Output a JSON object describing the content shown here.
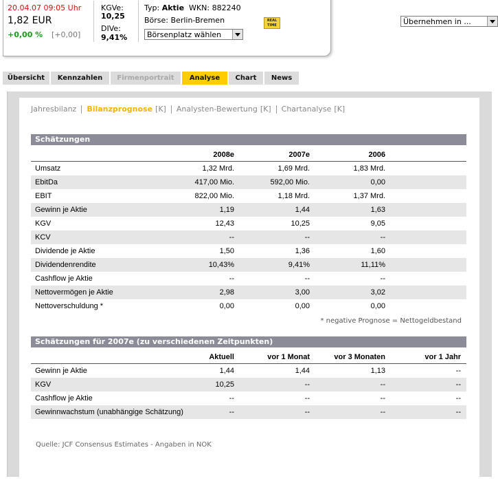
{
  "quote": {
    "datetime": "20.04.07  09:05 Uhr",
    "price": "1,82 EUR",
    "change_pct": "+0,00 %",
    "change_abs": "[+0,00]",
    "kgve_label": "KGVe:",
    "kgve": "10,25",
    "dive_label": "DIVe:",
    "dive": "9,41%",
    "typ_label": "Typ:",
    "typ": "Aktie",
    "wkn_label": "WKN:",
    "wkn": "882240",
    "boerse": "Börse: Berlin-Bremen",
    "exchange_select": "Börsenplatz wählen",
    "realtime": "REAL TIME",
    "transfer_select": "Übernehmen in ..."
  },
  "tabs": [
    "Übersicht",
    "Kennzahlen",
    "Firmenportrait",
    "Analyse",
    "Chart",
    "News"
  ],
  "subnav": [
    {
      "label": "Jahresbilanz"
    },
    {
      "label": "Bilanzprognose",
      "suffix": "[K]"
    },
    {
      "label": "Analysten-Bewertung",
      "suffix": "[K]"
    },
    {
      "label": "Chartanalyse",
      "suffix": "[K]"
    }
  ],
  "estimates": {
    "title": "Schätzungen",
    "columns": [
      "2008e",
      "2007e",
      "2006"
    ],
    "rows": [
      [
        "Umsatz",
        "1,32 Mrd.",
        "1,69 Mrd.",
        "1,83 Mrd."
      ],
      [
        "EbitDa",
        "417,00 Mio.",
        "592,00 Mio.",
        "0,00"
      ],
      [
        "EBIT",
        "822,00 Mio.",
        "1,18 Mrd.",
        "1,37 Mrd."
      ],
      [
        "Gewinn je Aktie",
        "1,19",
        "1,44",
        "1,63"
      ],
      [
        "KGV",
        "12,43",
        "10,25",
        "9,05"
      ],
      [
        "KCV",
        "--",
        "--",
        "--"
      ],
      [
        "Dividende je Aktie",
        "1,50",
        "1,36",
        "1,60"
      ],
      [
        "Dividendenrendite",
        "10,43%",
        "9,41%",
        "11,11%"
      ],
      [
        "Cashflow je Aktie",
        "--",
        "--",
        "--"
      ],
      [
        "Nettovermögen je Aktie",
        "2,98",
        "3,00",
        "3,02"
      ],
      [
        "Nettoverschuldung *",
        "0,00",
        "0,00",
        "0,00"
      ]
    ]
  },
  "footnote": "* negative Prognose = Nettogeldbestand",
  "estimates_timeline": {
    "title": "Schätzungen für 2007e (zu verschiedenen Zeitpunkten)",
    "columns": [
      "Aktuell",
      "vor 1 Monat",
      "vor 3 Monaten",
      "vor 1 Jahr"
    ],
    "rows": [
      [
        "Gewinn je Aktie",
        "1,44",
        "1,44",
        "1,13",
        "--"
      ],
      [
        "KGV",
        "10,25",
        "--",
        "--",
        "--"
      ],
      [
        "Cashflow je Aktie",
        "--",
        "--",
        "--",
        "--"
      ],
      [
        "Gewinnwachstum (unabhängige Schätzung)",
        "--",
        "--",
        "--",
        "--"
      ]
    ]
  },
  "source": "Quelle: JCF Consensus Estimates - Angaben in NOK"
}
